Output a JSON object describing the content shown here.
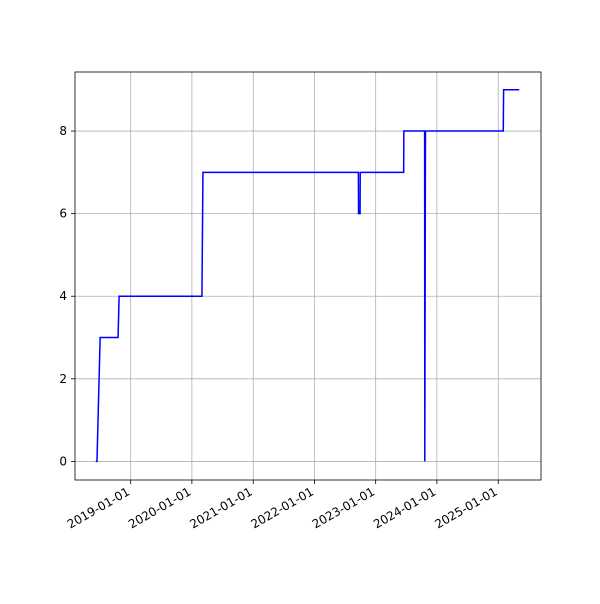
{
  "chart_data": {
    "type": "line",
    "x": [
      "2018-06-07",
      "2018-06-14",
      "2018-07-03",
      "2018-10-18",
      "2018-10-24",
      "2020-03-01",
      "2020-03-07",
      "2022-09-20",
      "2022-09-21",
      "2022-09-30",
      "2022-10-01",
      "2023-06-17",
      "2023-06-18",
      "2023-10-20",
      "2023-10-21",
      "2023-10-25",
      "2025-01-31",
      "2025-02-02",
      "2025-05-06"
    ],
    "series": [
      {
        "color": "#0000ff",
        "values": [
          0,
          0,
          3,
          3,
          4,
          4,
          7,
          7,
          6,
          6,
          7,
          7,
          8,
          8,
          0,
          8,
          8,
          9,
          9
        ]
      }
    ],
    "xlim": [
      "2018-02-03",
      "2025-09-13"
    ],
    "xticks": [
      "2019-01-01",
      "2020-01-01",
      "2021-01-01",
      "2022-01-01",
      "2023-01-01",
      "2024-01-01",
      "2025-01-01"
    ],
    "ylim": [
      -0.45,
      9.43
    ],
    "yticks": [
      0,
      2,
      4,
      6,
      8
    ],
    "grid": true
  }
}
